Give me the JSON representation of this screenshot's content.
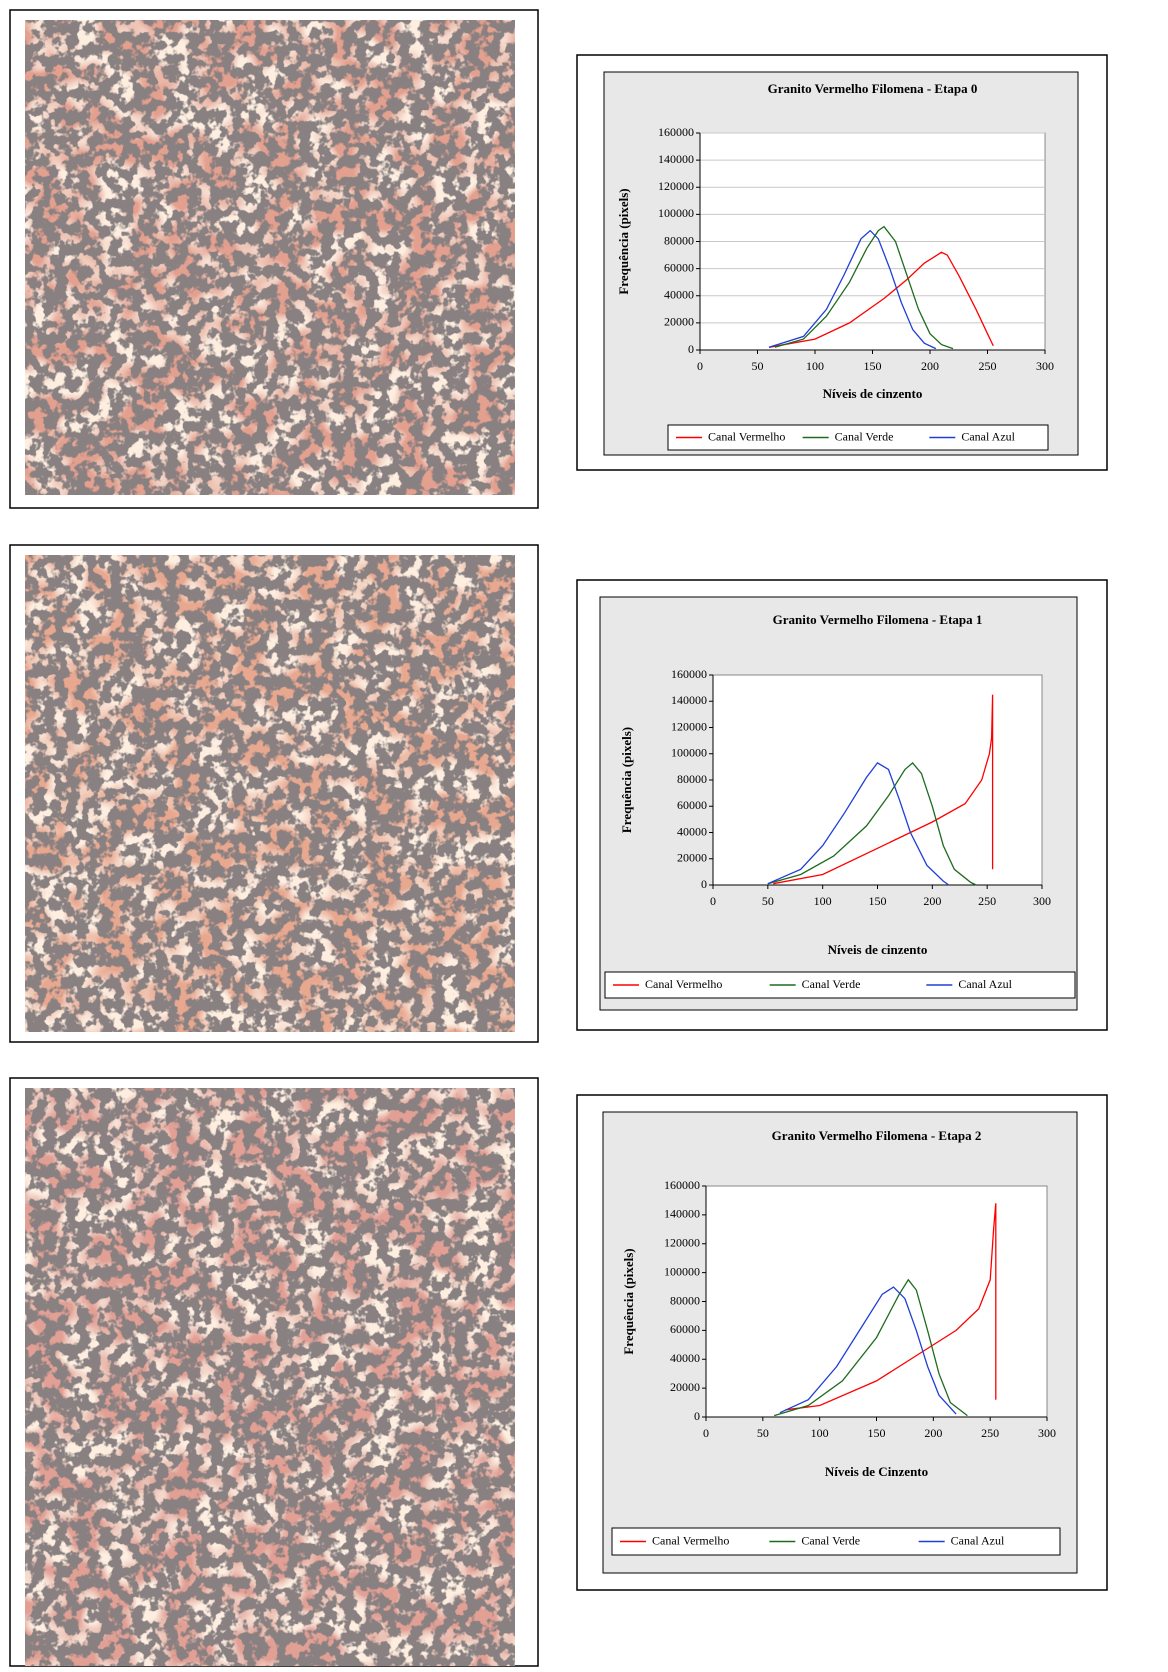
{
  "chart_data": [
    {
      "type": "line",
      "title": "Granito Vermelho Filomena - Etapa 0",
      "x_label": "Níveis de cinzento",
      "y_label": "Frequência (pixels)",
      "xlim": [
        0,
        300
      ],
      "xticks": [
        0,
        50,
        100,
        150,
        200,
        250,
        300
      ],
      "ylim": [
        0,
        160000
      ],
      "yticks": [
        0,
        20000,
        40000,
        60000,
        80000,
        100000,
        120000,
        140000,
        160000
      ],
      "grid": true,
      "legend": "bottom",
      "series": [
        {
          "name": "Canal Vermelho",
          "color": "#ff0000",
          "x": [
            60,
            100,
            130,
            160,
            180,
            195,
            210,
            215,
            225,
            240,
            250,
            255
          ],
          "values": [
            2000,
            8000,
            20000,
            38000,
            52000,
            64000,
            72000,
            70000,
            55000,
            30000,
            12000,
            3000
          ]
        },
        {
          "name": "Canal Verde",
          "color": "#1e6b1e",
          "x": [
            65,
            90,
            110,
            130,
            145,
            155,
            160,
            170,
            180,
            190,
            200,
            210,
            220
          ],
          "values": [
            2000,
            8000,
            25000,
            50000,
            75000,
            88000,
            91000,
            80000,
            55000,
            30000,
            12000,
            4000,
            1000
          ]
        },
        {
          "name": "Canal Azul",
          "color": "#1f3fd6",
          "x": [
            60,
            90,
            110,
            125,
            140,
            148,
            155,
            165,
            175,
            185,
            195,
            205
          ],
          "values": [
            2000,
            10000,
            30000,
            55000,
            82000,
            88000,
            82000,
            60000,
            35000,
            15000,
            5000,
            1000
          ]
        }
      ]
    },
    {
      "type": "line",
      "title": "Granito Vermelho Filomena - Etapa 1",
      "x_label": "Níveis de cinzento",
      "y_label": "Frequência (pixels)",
      "xlim": [
        0,
        300
      ],
      "xticks": [
        0,
        50,
        100,
        150,
        200,
        250,
        300
      ],
      "ylim": [
        0,
        160000
      ],
      "yticks": [
        0,
        20000,
        40000,
        60000,
        80000,
        100000,
        120000,
        140000,
        160000
      ],
      "grid": false,
      "legend": "bottom",
      "series": [
        {
          "name": "Canal Vermelho",
          "color": "#ff0000",
          "x": [
            55,
            100,
            150,
            200,
            230,
            245,
            252,
            254,
            255,
            255
          ],
          "values": [
            1000,
            8000,
            28000,
            48000,
            62000,
            80000,
            100000,
            112000,
            145000,
            12000
          ]
        },
        {
          "name": "Canal Verde",
          "color": "#1e6b1e",
          "x": [
            50,
            80,
            110,
            140,
            160,
            175,
            182,
            190,
            200,
            210,
            220,
            235,
            240
          ],
          "values": [
            1000,
            8000,
            22000,
            45000,
            68000,
            88000,
            93000,
            85000,
            60000,
            30000,
            12000,
            2000,
            0
          ]
        },
        {
          "name": "Canal Azul",
          "color": "#1f3fd6",
          "x": [
            50,
            80,
            100,
            120,
            140,
            150,
            160,
            170,
            180,
            195,
            210,
            215
          ],
          "values": [
            1000,
            12000,
            30000,
            55000,
            82000,
            93000,
            88000,
            65000,
            40000,
            15000,
            3000,
            0
          ]
        }
      ]
    },
    {
      "type": "line",
      "title": "Granito Vermelho Filomena - Etapa 2",
      "x_label": "Níveis de Cinzento",
      "y_label": "Frequência (pixels)",
      "xlim": [
        0,
        300
      ],
      "xticks": [
        0,
        50,
        100,
        150,
        200,
        250,
        300
      ],
      "ylim": [
        0,
        160000
      ],
      "yticks": [
        0,
        20000,
        40000,
        60000,
        80000,
        100000,
        120000,
        140000,
        160000
      ],
      "grid": false,
      "legend": "bottom",
      "series": [
        {
          "name": "Canal Vermelho",
          "color": "#ff0000",
          "x": [
            70,
            100,
            150,
            190,
            220,
            240,
            250,
            253,
            255,
            255
          ],
          "values": [
            5000,
            8000,
            25000,
            45000,
            60000,
            75000,
            95000,
            130000,
            148000,
            12000
          ]
        },
        {
          "name": "Canal Verde",
          "color": "#1e6b1e",
          "x": [
            60,
            90,
            120,
            150,
            170,
            178,
            185,
            195,
            205,
            215,
            230
          ],
          "values": [
            1000,
            8000,
            25000,
            55000,
            85000,
            95000,
            88000,
            60000,
            30000,
            10000,
            1000
          ]
        },
        {
          "name": "Canal Azul",
          "color": "#1f3fd6",
          "x": [
            65,
            90,
            115,
            135,
            155,
            165,
            175,
            185,
            195,
            205,
            220
          ],
          "values": [
            3000,
            12000,
            35000,
            60000,
            85000,
            90000,
            82000,
            60000,
            35000,
            15000,
            2000
          ]
        }
      ]
    }
  ]
}
